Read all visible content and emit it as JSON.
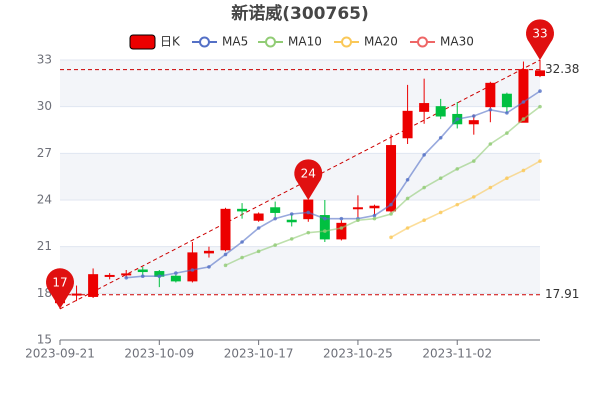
{
  "chart_data": {
    "type": "candlestick",
    "title": "新诺威(300765)",
    "categories": [
      "2023-09-21",
      null,
      null,
      null,
      null,
      null,
      "2023-10-09",
      null,
      null,
      null,
      null,
      null,
      "2023-10-17",
      null,
      null,
      null,
      null,
      null,
      "2023-10-25",
      null,
      null,
      null,
      null,
      null,
      "2023-11-02",
      null,
      null,
      null,
      null,
      null
    ],
    "series": [
      {
        "name": "日K",
        "type": "candlestick",
        "color": "#ec0000",
        "down_color": "#00c040",
        "open": [
          17.4,
          17.9,
          17.8,
          19.1,
          19.2,
          19.5,
          19.4,
          19.1,
          18.8,
          20.6,
          20.8,
          23.4,
          22.7,
          23.5,
          22.7,
          22.8,
          23.0,
          21.5,
          23.5,
          23.5,
          23.3,
          28.0,
          29.7,
          30.0,
          29.5,
          28.9,
          30.0,
          30.8,
          29.0,
          32.0
        ],
        "close": [
          17.91,
          17.95,
          19.2,
          19.15,
          19.25,
          19.4,
          19.1,
          18.8,
          20.6,
          20.7,
          23.4,
          23.3,
          23.1,
          23.2,
          22.6,
          24.0,
          21.5,
          22.5,
          23.5,
          23.6,
          27.5,
          29.7,
          30.2,
          29.4,
          28.9,
          29.1,
          31.5,
          30.0,
          32.38,
          32.3
        ],
        "low": [
          17.0,
          17.5,
          17.7,
          18.9,
          19.0,
          19.1,
          18.4,
          18.7,
          18.7,
          20.3,
          20.7,
          22.8,
          22.6,
          22.9,
          22.3,
          22.6,
          21.3,
          21.4,
          22.9,
          23.0,
          23.2,
          27.6,
          28.9,
          29.2,
          28.6,
          28.2,
          29.0,
          29.6,
          29.0,
          31.9
        ],
        "high": [
          18.1,
          18.5,
          19.6,
          19.3,
          19.5,
          19.7,
          19.5,
          19.2,
          21.3,
          21.0,
          23.5,
          23.8,
          23.2,
          23.9,
          23.1,
          24.0,
          24.0,
          22.7,
          24.3,
          23.7,
          28.2,
          31.4,
          31.8,
          30.5,
          30.3,
          29.5,
          31.6,
          30.9,
          32.9,
          33.0
        ]
      },
      {
        "name": "MA5",
        "color": "#5470c6",
        "values": [
          null,
          null,
          null,
          null,
          19.0,
          19.1,
          19.1,
          19.3,
          19.5,
          19.7,
          20.5,
          21.3,
          22.2,
          22.8,
          23.1,
          23.2,
          22.8,
          22.8,
          22.8,
          23.0,
          23.7,
          25.3,
          26.9,
          28.0,
          29.2,
          29.4,
          29.8,
          29.6,
          30.3,
          31.0
        ]
      },
      {
        "name": "MA10",
        "color": "#91cc75",
        "values": [
          null,
          null,
          null,
          null,
          null,
          null,
          null,
          null,
          null,
          null,
          19.8,
          20.3,
          20.7,
          21.1,
          21.5,
          21.9,
          22.0,
          22.2,
          22.7,
          22.8,
          23.1,
          24.1,
          24.8,
          25.4,
          26.0,
          26.5,
          27.6,
          28.3,
          29.2,
          30.0
        ]
      },
      {
        "name": "MA20",
        "color": "#fac858",
        "values": [
          null,
          null,
          null,
          null,
          null,
          null,
          null,
          null,
          null,
          null,
          null,
          null,
          null,
          null,
          null,
          null,
          null,
          null,
          null,
          null,
          21.6,
          22.2,
          22.7,
          23.2,
          23.7,
          24.2,
          24.8,
          25.4,
          25.9,
          26.5
        ]
      },
      {
        "name": "MA30",
        "color": "#ee6666",
        "values": [
          null,
          null,
          null,
          null,
          null,
          null,
          null,
          null,
          null,
          null,
          null,
          null,
          null,
          null,
          null,
          null,
          null,
          null,
          null,
          null,
          null,
          null,
          null,
          null,
          null,
          null,
          null,
          null,
          null,
          null
        ]
      }
    ],
    "markpoints": [
      {
        "index": 0,
        "value": 17
      },
      {
        "index": 15,
        "value": 24
      },
      {
        "index": 29,
        "value": 33
      }
    ],
    "mark_lines": [
      32.38,
      17.91
    ],
    "ylim": [
      15,
      33
    ],
    "yticks": [
      15,
      18,
      21,
      24,
      27,
      30,
      33
    ]
  }
}
